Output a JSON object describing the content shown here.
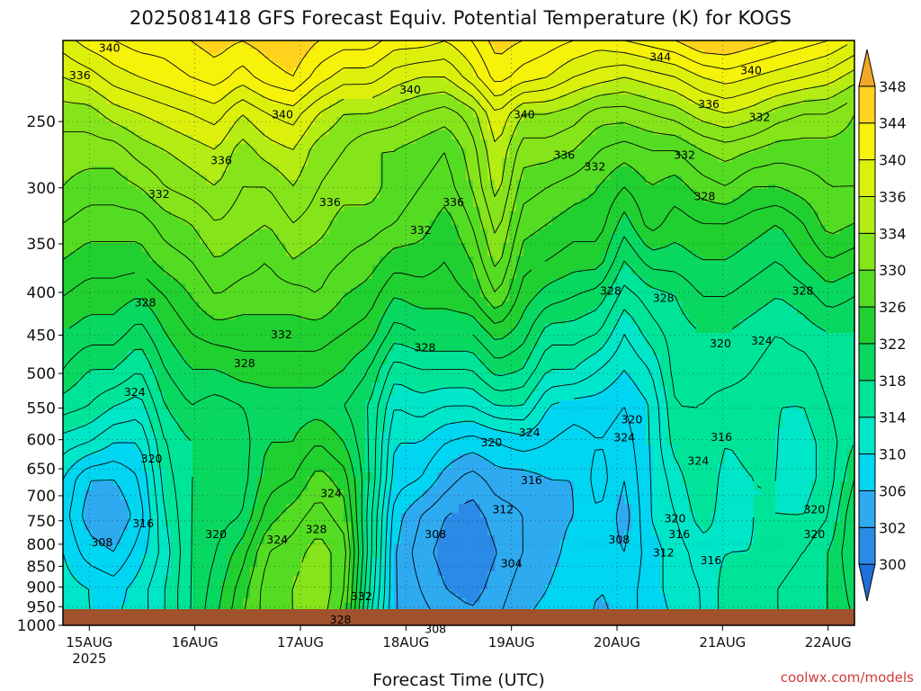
{
  "title": "2025081418 GFS Forecast Equiv. Potential Temperature (K) for KOGS",
  "credit": "coolwx.com/models",
  "chart_data": {
    "type": "heatmap",
    "title": "2025081418 GFS Forecast Equiv. Potential Temperature (K) for KOGS",
    "xlabel": "Forecast Time (UTC)",
    "ylabel": "",
    "x_ticks": [
      {
        "day": 0,
        "label": "15AUG",
        "sublabel": "2025"
      },
      {
        "day": 1,
        "label": "16AUG"
      },
      {
        "day": 2,
        "label": "17AUG"
      },
      {
        "day": 3,
        "label": "18AUG"
      },
      {
        "day": 4,
        "label": "19AUG"
      },
      {
        "day": 5,
        "label": "20AUG"
      },
      {
        "day": 6,
        "label": "21AUG"
      },
      {
        "day": 7,
        "label": "22AUG"
      }
    ],
    "y_ticks": [
      250,
      300,
      350,
      400,
      450,
      500,
      550,
      600,
      650,
      700,
      750,
      800,
      850,
      900,
      950,
      1000
    ],
    "y_scale": "log-pressure",
    "y_range_hPa": [
      200,
      1000
    ],
    "x_range_days": [
      -0.25,
      7.25
    ],
    "grid": true,
    "colorbar": {
      "levels": [
        298,
        300,
        302,
        306,
        310,
        314,
        318,
        322,
        326,
        330,
        334,
        336,
        340,
        344,
        348,
        352
      ],
      "labels": [
        300,
        302,
        306,
        310,
        314,
        318,
        322,
        326,
        330,
        334,
        336,
        340,
        344,
        348
      ],
      "colors": [
        "#1e6fd9",
        "#2a8ae6",
        "#2eaaf0",
        "#00d5f2",
        "#00e6c8",
        "#00e49a",
        "#08d860",
        "#20d030",
        "#54dc22",
        "#86e41a",
        "#b4ec14",
        "#dcf00c",
        "#f6f20a",
        "#ffd21e",
        "#f2a826"
      ],
      "extend": "both"
    },
    "grid_columns": 32,
    "grid_rows": 17,
    "theta_e_K": [
      [
        339,
        341,
        342,
        343,
        343,
        344,
        345,
        344,
        345,
        346,
        344,
        343,
        343,
        341,
        341,
        340,
        342,
        345,
        344,
        343,
        342,
        341,
        342,
        343,
        344,
        346,
        346,
        345,
        344,
        343,
        342,
        340
      ],
      [
        336,
        337,
        339,
        340,
        341,
        342,
        343,
        341,
        343,
        344,
        341,
        339,
        339,
        337,
        336,
        336,
        339,
        343,
        341,
        340,
        338,
        337,
        336,
        337,
        338,
        340,
        341,
        340,
        339,
        338,
        337,
        335
      ],
      [
        333,
        333,
        335,
        336,
        337,
        338,
        339,
        336,
        338,
        339,
        336,
        334,
        334,
        333,
        332,
        331,
        333,
        338,
        334,
        334,
        333,
        331,
        331,
        332,
        333,
        335,
        336,
        335,
        333,
        332,
        332,
        330
      ],
      [
        331,
        331,
        331,
        333,
        334,
        335,
        336,
        333,
        335,
        336,
        333,
        332,
        330,
        330,
        329,
        328,
        331,
        336,
        331,
        331,
        330,
        328,
        327,
        328,
        328,
        330,
        331,
        330,
        329,
        329,
        329,
        329
      ],
      [
        330,
        329,
        329,
        330,
        332,
        333,
        334,
        332,
        332,
        334,
        332,
        331,
        331,
        329,
        328,
        327,
        330,
        335,
        329,
        328,
        327,
        326,
        324,
        326,
        325,
        327,
        328,
        326,
        326,
        327,
        328,
        328
      ],
      [
        328,
        327,
        327,
        327,
        329,
        330,
        332,
        331,
        330,
        332,
        331,
        329,
        329,
        328,
        327,
        325,
        328,
        333,
        327,
        326,
        325,
        325,
        321,
        325,
        323,
        324,
        324,
        323,
        322,
        324,
        327,
        326
      ],
      [
        326,
        325,
        325,
        325,
        327,
        328,
        330,
        329,
        328,
        330,
        329,
        328,
        327,
        325,
        325,
        324,
        326,
        331,
        325,
        324,
        323,
        323,
        318,
        321,
        321,
        322,
        322,
        321,
        320,
        322,
        324,
        323
      ],
      [
        324,
        323,
        323,
        322,
        324,
        326,
        328,
        327,
        327,
        327,
        328,
        326,
        325,
        322,
        323,
        323,
        324,
        328,
        323,
        321,
        320,
        319,
        315,
        317,
        318,
        320,
        320,
        319,
        318,
        319,
        321,
        320
      ],
      [
        322,
        321,
        321,
        319,
        322,
        324,
        325,
        325,
        325,
        325,
        325,
        324,
        323,
        319,
        320,
        320,
        320,
        323,
        321,
        317,
        317,
        316,
        312,
        315,
        317,
        318,
        318,
        317,
        316,
        317,
        318,
        318
      ],
      [
        320,
        318,
        318,
        316,
        320,
        322,
        322,
        323,
        323,
        323,
        323,
        322,
        320,
        315,
        316,
        316,
        316,
        319,
        318,
        314,
        314,
        312,
        310,
        312,
        317,
        317,
        317,
        316,
        315,
        315,
        317,
        318
      ],
      [
        317,
        316,
        314,
        313,
        318,
        320,
        319,
        320,
        321,
        321,
        321,
        320,
        318,
        312,
        313,
        312,
        312,
        314,
        314,
        310,
        309,
        309,
        308,
        310,
        316,
        316,
        315,
        315,
        314,
        314,
        316,
        318
      ],
      [
        313,
        312,
        310,
        310,
        316,
        318,
        318,
        319,
        322,
        322,
        324,
        322,
        318,
        310,
        310,
        308,
        307,
        308,
        309,
        308,
        307,
        308,
        307,
        310,
        315,
        316,
        314,
        315,
        314,
        313,
        315,
        318
      ],
      [
        310,
        306,
        306,
        308,
        315,
        318,
        318,
        319,
        323,
        324,
        327,
        325,
        318,
        309,
        308,
        305,
        303,
        305,
        305,
        306,
        306,
        309,
        306,
        310,
        313,
        316,
        313,
        314,
        314,
        313,
        315,
        320
      ],
      [
        309,
        305,
        304,
        307,
        314,
        318,
        319,
        320,
        325,
        327,
        329,
        327,
        317,
        307,
        304,
        302,
        301,
        303,
        304,
        305,
        306,
        308,
        305,
        310,
        312,
        315,
        313,
        314,
        314,
        314,
        316,
        322
      ],
      [
        310,
        307,
        306,
        309,
        313,
        318,
        320,
        323,
        328,
        329,
        331,
        329,
        317,
        306,
        303,
        301,
        300,
        302,
        304,
        305,
        307,
        307,
        306,
        309,
        311,
        313,
        314,
        314,
        315,
        316,
        318,
        322
      ],
      [
        311,
        310,
        309,
        311,
        314,
        318,
        321,
        325,
        329,
        330,
        332,
        328,
        316,
        306,
        304,
        302,
        301,
        303,
        305,
        306,
        308,
        306,
        307,
        309,
        311,
        312,
        315,
        315,
        316,
        317,
        318,
        321
      ],
      [
        311,
        310,
        310,
        311,
        314,
        318,
        322,
        326,
        329,
        330,
        331,
        327,
        314,
        306,
        305,
        304,
        303,
        304,
        306,
        307,
        308,
        305,
        307,
        309,
        310,
        312,
        315,
        315,
        316,
        317,
        318,
        320
      ]
    ],
    "contour_interval_K": 2,
    "contour_labels": [
      {
        "text": "340",
        "day": 0.19,
        "p": 204
      },
      {
        "text": "336",
        "day": -0.09,
        "p": 220
      },
      {
        "text": "344",
        "day": 5.41,
        "p": 209
      },
      {
        "text": "340",
        "day": 6.27,
        "p": 217
      },
      {
        "text": "340",
        "day": 3.04,
        "p": 229
      },
      {
        "text": "340",
        "day": 1.83,
        "p": 245
      },
      {
        "text": "340",
        "day": 4.12,
        "p": 245
      },
      {
        "text": "336",
        "day": 5.87,
        "p": 238
      },
      {
        "text": "332",
        "day": 6.35,
        "p": 247
      },
      {
        "text": "336",
        "day": 1.25,
        "p": 278
      },
      {
        "text": "336",
        "day": 4.5,
        "p": 274
      },
      {
        "text": "332",
        "day": 4.79,
        "p": 283
      },
      {
        "text": "332",
        "day": 5.64,
        "p": 274
      },
      {
        "text": "332",
        "day": 0.66,
        "p": 305
      },
      {
        "text": "336",
        "day": 2.28,
        "p": 312
      },
      {
        "text": "336",
        "day": 3.45,
        "p": 312
      },
      {
        "text": "328",
        "day": 5.83,
        "p": 307
      },
      {
        "text": "332",
        "day": 3.14,
        "p": 337
      },
      {
        "text": "328",
        "day": 0.53,
        "p": 411
      },
      {
        "text": "328",
        "day": 4.94,
        "p": 398
      },
      {
        "text": "328",
        "day": 5.44,
        "p": 406
      },
      {
        "text": "328",
        "day": 6.76,
        "p": 398
      },
      {
        "text": "332",
        "day": 1.82,
        "p": 449
      },
      {
        "text": "328",
        "day": 3.18,
        "p": 465
      },
      {
        "text": "320",
        "day": 5.98,
        "p": 460
      },
      {
        "text": "324",
        "day": 6.37,
        "p": 457
      },
      {
        "text": "328",
        "day": 1.47,
        "p": 486
      },
      {
        "text": "324",
        "day": 0.43,
        "p": 526
      },
      {
        "text": "320",
        "day": 5.14,
        "p": 567
      },
      {
        "text": "324",
        "day": 4.17,
        "p": 588
      },
      {
        "text": "324",
        "day": 5.07,
        "p": 596
      },
      {
        "text": "316",
        "day": 5.99,
        "p": 595
      },
      {
        "text": "320",
        "day": 3.81,
        "p": 604
      },
      {
        "text": "320",
        "day": 0.59,
        "p": 632
      },
      {
        "text": "324",
        "day": 5.77,
        "p": 636
      },
      {
        "text": "316",
        "day": 4.19,
        "p": 670
      },
      {
        "text": "324",
        "day": 2.29,
        "p": 695
      },
      {
        "text": "312",
        "day": 3.92,
        "p": 727
      },
      {
        "text": "320",
        "day": 6.87,
        "p": 727
      },
      {
        "text": "320",
        "day": 5.55,
        "p": 745
      },
      {
        "text": "316",
        "day": 0.51,
        "p": 755
      },
      {
        "text": "328",
        "day": 2.15,
        "p": 767
      },
      {
        "text": "320",
        "day": 1.2,
        "p": 778
      },
      {
        "text": "308",
        "day": 3.28,
        "p": 778
      },
      {
        "text": "316",
        "day": 5.59,
        "p": 778
      },
      {
        "text": "320",
        "day": 6.87,
        "p": 778
      },
      {
        "text": "324",
        "day": 1.78,
        "p": 789
      },
      {
        "text": "308",
        "day": 5.02,
        "p": 789
      },
      {
        "text": "308",
        "day": 0.12,
        "p": 795
      },
      {
        "text": "312",
        "day": 5.44,
        "p": 818
      },
      {
        "text": "316",
        "day": 5.89,
        "p": 836
      },
      {
        "text": "304",
        "day": 4.0,
        "p": 843
      },
      {
        "text": "332",
        "day": 2.58,
        "p": 923
      },
      {
        "text": "328",
        "day": 2.38,
        "p": 984
      },
      {
        "text": "308",
        "day": 3.28,
        "p": 1010
      }
    ]
  }
}
